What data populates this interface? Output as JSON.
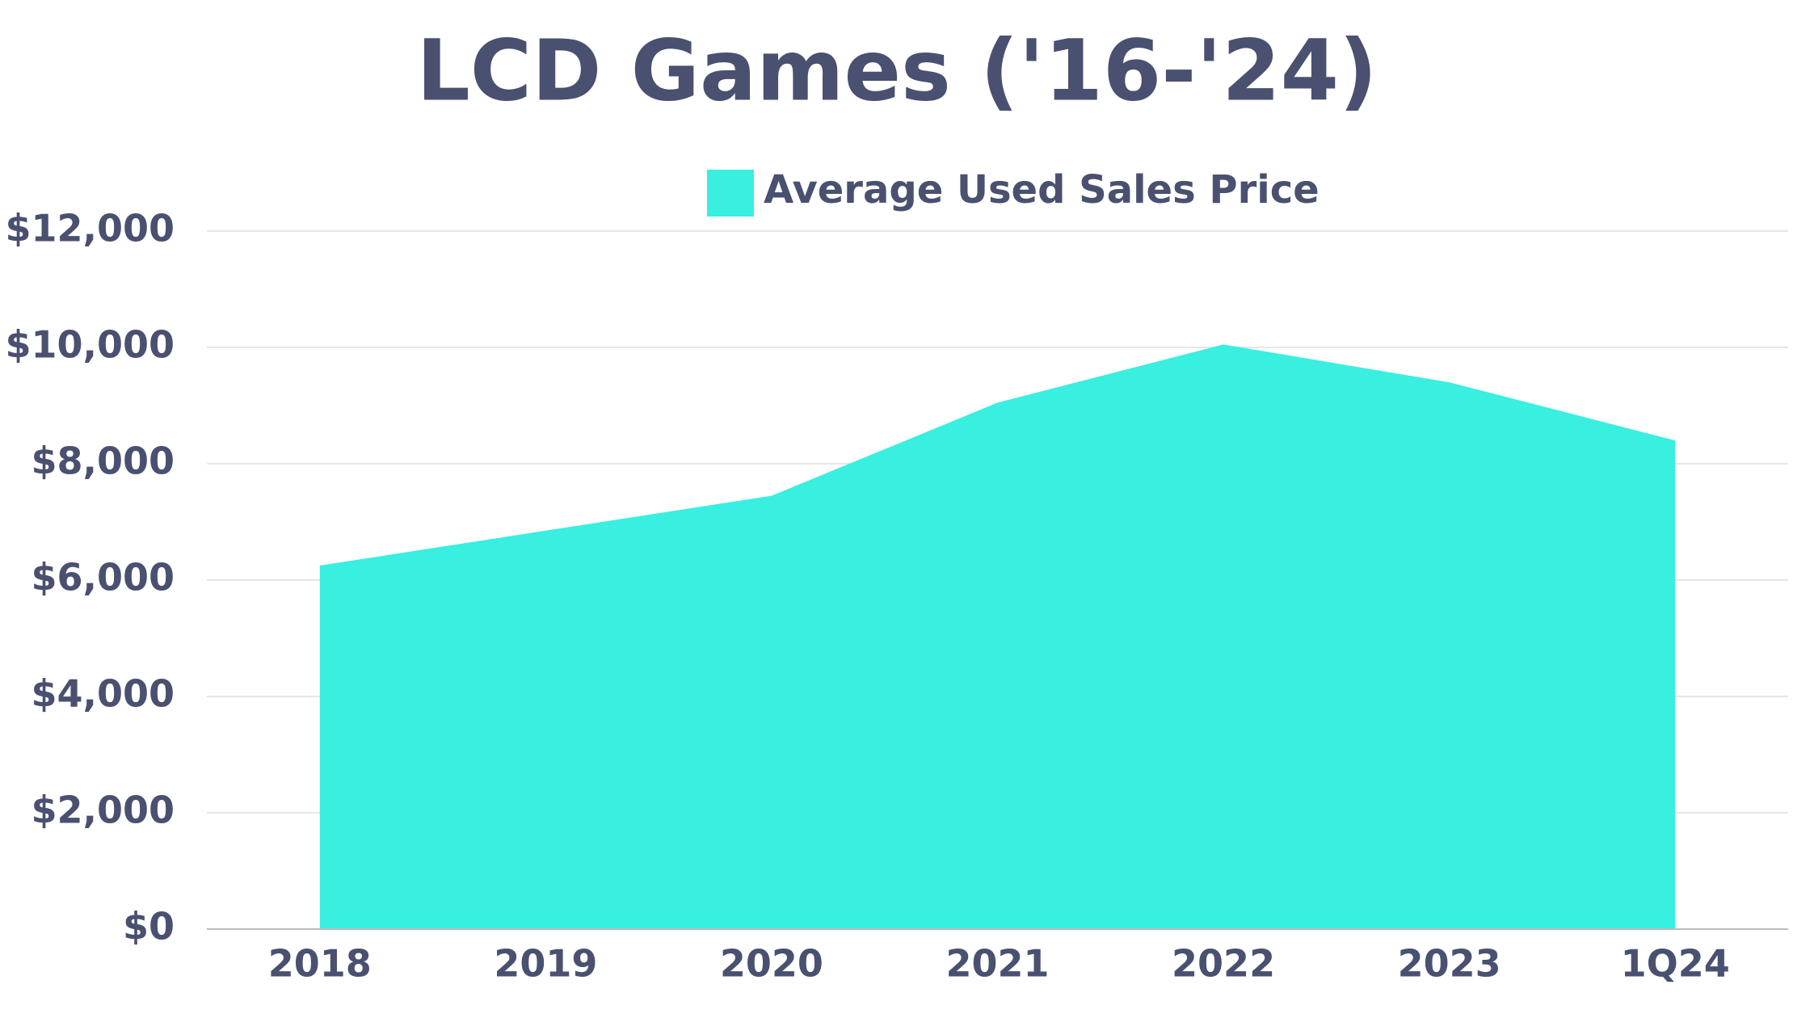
{
  "chart_data": {
    "type": "area",
    "title": "LCD Games ('16-'24)",
    "categories": [
      "2018",
      "2019",
      "2020",
      "2021",
      "2022",
      "2023",
      "1Q24"
    ],
    "series": [
      {
        "name": "Average Used Sales Price",
        "color": "#38efe0",
        "values": [
          6250,
          6850,
          7450,
          9050,
          10050,
          9400,
          8400
        ]
      }
    ],
    "ylim": [
      0,
      12000
    ],
    "yticks": [
      {
        "value": 0,
        "label": "$0"
      },
      {
        "value": 2000,
        "label": "$2,000"
      },
      {
        "value": 4000,
        "label": "$4,000"
      },
      {
        "value": 6000,
        "label": "$6,000"
      },
      {
        "value": 8000,
        "label": "$8,000"
      },
      {
        "value": 10000,
        "label": "$10,000"
      },
      {
        "value": 12000,
        "label": "$12,000"
      }
    ],
    "grid": true,
    "legend": "top"
  }
}
